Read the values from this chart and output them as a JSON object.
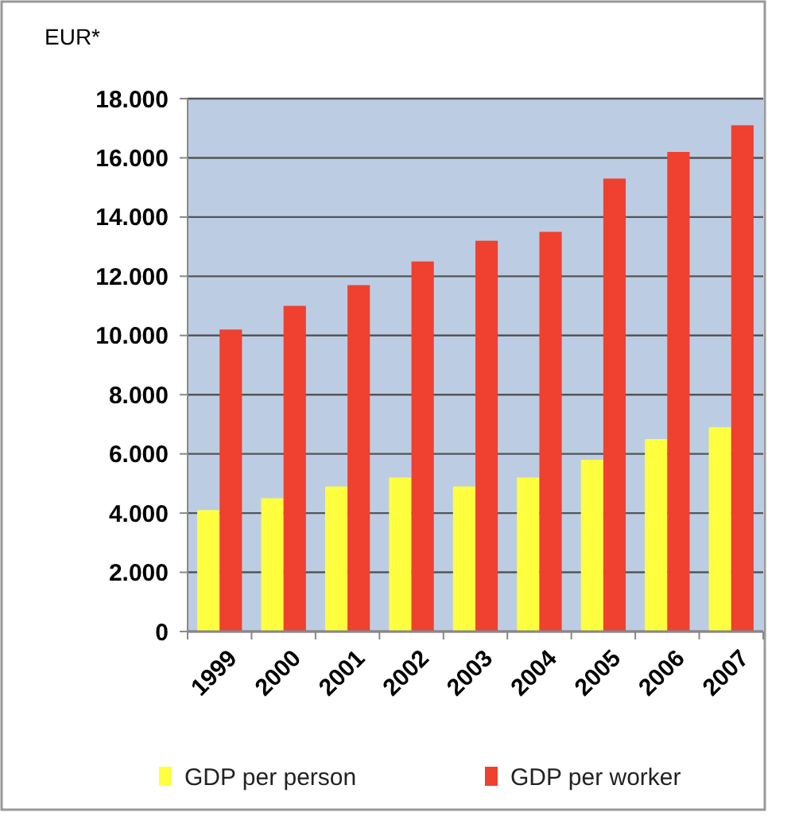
{
  "chart_data": {
    "type": "bar",
    "ylabel": "EUR*",
    "categories": [
      "1999",
      "2000",
      "2001",
      "2002",
      "2003",
      "2004",
      "2005",
      "2006",
      "2007"
    ],
    "series": [
      {
        "name": "GDP per person",
        "color": "#ffff40",
        "values": [
          4100,
          4500,
          4900,
          5200,
          4900,
          5200,
          5800,
          6500,
          6900
        ]
      },
      {
        "name": "GDP per worker",
        "color": "#f04030",
        "values": [
          10200,
          11000,
          11700,
          12500,
          13200,
          13500,
          15300,
          16200,
          17100
        ]
      }
    ],
    "ylim": [
      0,
      18000
    ],
    "yticks": [
      {
        "value": 0,
        "label": "0"
      },
      {
        "value": 2000,
        "label": "2.000"
      },
      {
        "value": 4000,
        "label": "4.000"
      },
      {
        "value": 6000,
        "label": "6.000"
      },
      {
        "value": 8000,
        "label": "8.000"
      },
      {
        "value": 10000,
        "label": "10.000"
      },
      {
        "value": 12000,
        "label": "12.000"
      },
      {
        "value": 14000,
        "label": "14.000"
      },
      {
        "value": 16000,
        "label": "16.000"
      },
      {
        "value": 18000,
        "label": "18.000"
      }
    ],
    "grid": "y",
    "legend": "bottom"
  }
}
